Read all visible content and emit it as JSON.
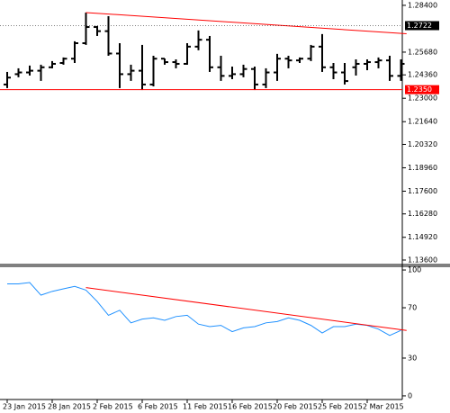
{
  "chart_data": [
    {
      "type": "ohlc",
      "open": [
        1.238,
        1.244,
        1.245,
        1.246,
        1.248,
        1.2505,
        1.253,
        1.262,
        1.2714,
        1.269,
        1.256,
        1.244,
        1.246,
        1.238,
        1.253,
        1.251,
        1.25,
        1.26,
        1.264,
        1.248,
        1.243,
        1.244,
        1.247,
        1.238,
        1.245,
        1.253,
        1.252,
        1.253,
        1.26,
        1.248,
        1.245,
        1.248,
        1.25,
        1.251,
        1.252,
        1.243
      ],
      "high": [
        1.2453,
        1.2474,
        1.249,
        1.2495,
        1.2516,
        1.2537,
        1.2631,
        1.2798,
        1.272,
        1.2777,
        1.262,
        1.2495,
        1.261,
        1.2547,
        1.2531,
        1.2526,
        1.262,
        1.2694,
        1.2662,
        1.2547,
        1.2484,
        1.2495,
        1.2484,
        1.2474,
        1.2558,
        1.2547,
        1.2537,
        1.261,
        1.2673,
        1.2505,
        1.2505,
        1.2526,
        1.2526,
        1.2537,
        1.2547,
        1.2526
      ],
      "low": [
        1.2359,
        1.2422,
        1.2432,
        1.2401,
        1.2474,
        1.2495,
        1.2505,
        1.261,
        1.2662,
        1.2547,
        1.2359,
        1.2401,
        1.2348,
        1.2369,
        1.2495,
        1.2474,
        1.2495,
        1.2579,
        1.2453,
        1.2401,
        1.2411,
        1.2422,
        1.2348,
        1.2359,
        1.2401,
        1.2474,
        1.2505,
        1.2516,
        1.2453,
        1.2411,
        1.238,
        1.2432,
        1.2463,
        1.2474,
        1.2401,
        1.2401
      ],
      "close": [
        1.242,
        1.245,
        1.246,
        1.248,
        1.25,
        1.253,
        1.262,
        1.2714,
        1.269,
        1.256,
        1.244,
        1.246,
        1.238,
        1.253,
        1.251,
        1.25,
        1.26,
        1.264,
        1.248,
        1.243,
        1.244,
        1.247,
        1.238,
        1.245,
        1.253,
        1.252,
        1.253,
        1.26,
        1.248,
        1.245,
        1.24,
        1.25,
        1.251,
        1.252,
        1.243,
        1.25
      ],
      "color": "#000000",
      "ylim": [
        1.1339,
        1.2871
      ],
      "yticks": [
        {
          "value": 1.284,
          "label": "1.28400"
        },
        {
          "value": 1.2568,
          "label": "1.25680"
        },
        {
          "value": 1.2436,
          "label": "1.24360"
        },
        {
          "value": 1.23,
          "label": "1.23000"
        },
        {
          "value": 1.2164,
          "label": "1.21640"
        },
        {
          "value": 1.2032,
          "label": "1.20320"
        },
        {
          "value": 1.1896,
          "label": "1.18960"
        },
        {
          "value": 1.176,
          "label": "1.17600"
        },
        {
          "value": 1.1628,
          "label": "1.16280"
        },
        {
          "value": 1.1492,
          "label": "1.14920"
        },
        {
          "value": 1.136,
          "label": "1.13600"
        }
      ],
      "hlines": [
        {
          "value": 1.2722,
          "label": "1.2722",
          "color": "#000000"
        },
        {
          "value": 1.235,
          "label": "1.2350",
          "color": "#ff0000"
        }
      ],
      "trendlines": [
        {
          "x": [
            7,
            35.5
          ],
          "values": [
            1.2798,
            1.2675
          ],
          "color": "#ff0000"
        }
      ]
    },
    {
      "type": "line",
      "categories": [
        "23 Jan 2015",
        null,
        null,
        null,
        "28 Jan 2015",
        null,
        null,
        null,
        "2 Feb 2015",
        null,
        null,
        null,
        "6 Feb 2015",
        null,
        null,
        null,
        "11 Feb 2015",
        null,
        null,
        null,
        "16 Feb 2015",
        null,
        null,
        null,
        "20 Feb 2015",
        null,
        null,
        null,
        "25 Feb 2015",
        null,
        null,
        null,
        "2 Mar 2015",
        null,
        null,
        null
      ],
      "values": [
        89,
        89,
        90,
        80,
        83,
        85,
        87,
        84,
        75,
        64,
        68,
        58,
        61,
        62,
        60,
        63,
        64,
        57,
        55,
        56,
        51,
        54,
        55,
        58,
        59,
        62,
        60,
        56,
        50,
        55,
        55,
        57,
        56,
        53,
        48,
        52
      ],
      "color": "#1e90ff",
      "ylim": [
        -2.9,
        102.9
      ],
      "yticks": [
        100,
        70,
        30,
        0
      ],
      "trendlines": [
        {
          "x": [
            7,
            35.5
          ],
          "values": [
            86,
            52
          ],
          "color": "#ff0000"
        }
      ]
    }
  ]
}
